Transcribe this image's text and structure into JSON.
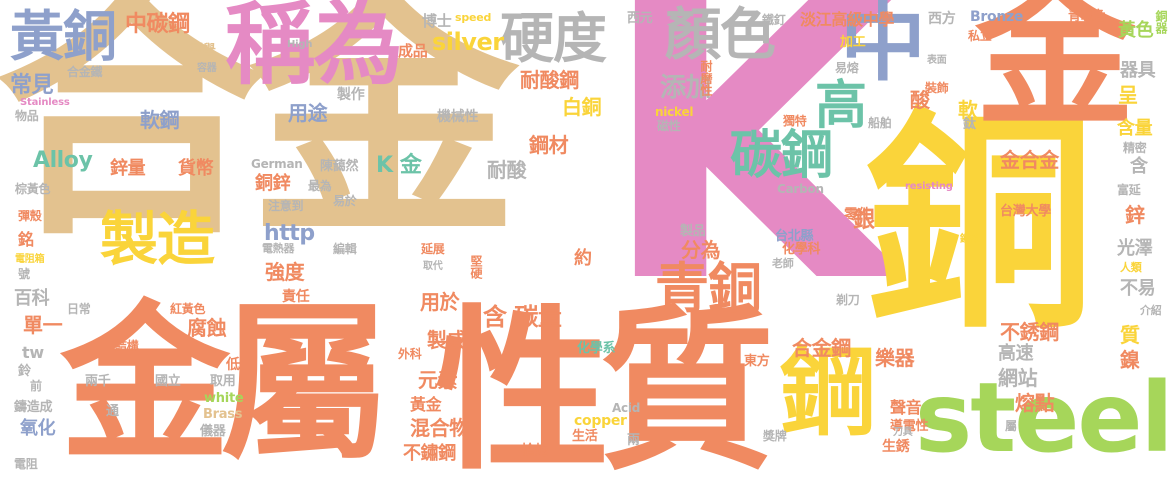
{
  "palette": {
    "tan": "#e3c28f",
    "pink": "#e58ac4",
    "orange": "#f08a61",
    "yellow": "#fad43a",
    "green": "#a6d65a",
    "blue": "#8ea0cb",
    "teal": "#6cc3a8",
    "grey": "#b5b5b5"
  },
  "words": [
    {
      "t": "合金",
      "c": "tan",
      "cls": "big"
    },
    {
      "t": "K",
      "c": "pink"
    },
    {
      "t": "金屬",
      "c": "orange",
      "cls": "big"
    },
    {
      "t": "銅",
      "c": "yellow"
    },
    {
      "t": "金",
      "c": "orange"
    },
    {
      "t": "性質",
      "c": "orange",
      "cls": "big"
    },
    {
      "t": "steel",
      "c": "green"
    },
    {
      "t": "製造",
      "c": "yellow"
    },
    {
      "t": "稱為",
      "c": "pink"
    },
    {
      "t": "鋼",
      "c": "yellow"
    },
    {
      "t": "中",
      "c": "blue"
    },
    {
      "t": "黃銅",
      "c": "blue"
    },
    {
      "t": "硬度",
      "c": "grey"
    },
    {
      "t": "顏色",
      "c": "grey"
    },
    {
      "t": "碳鋼",
      "c": "teal"
    },
    {
      "t": "青銅",
      "c": "orange"
    },
    {
      "t": "高",
      "c": "teal"
    },
    {
      "t": "中碳鋼",
      "c": "orange"
    },
    {
      "t": "博士",
      "c": "grey"
    },
    {
      "t": "speed",
      "c": "yellow"
    },
    {
      "t": "西元",
      "c": "grey"
    },
    {
      "t": "鐵釘",
      "c": "grey"
    },
    {
      "t": "淡江高級中學",
      "c": "orange"
    },
    {
      "t": "西方",
      "c": "grey"
    },
    {
      "t": "Bronze",
      "c": "blue"
    },
    {
      "t": "青灰色",
      "c": "orange"
    },
    {
      "t": "銅器",
      "c": "green"
    },
    {
      "t": "成品",
      "c": "orange"
    },
    {
      "t": "silver",
      "c": "yellow"
    },
    {
      "t": "列舉",
      "c": "tan"
    },
    {
      "t": "High",
      "c": "grey"
    },
    {
      "t": "合金鐵",
      "c": "grey"
    },
    {
      "t": "容器",
      "c": "grey"
    },
    {
      "t": "常見",
      "c": "blue"
    },
    {
      "t": "Stainless",
      "c": "pink"
    },
    {
      "t": "物品",
      "c": "grey"
    },
    {
      "t": "耐酸鋼",
      "c": "orange"
    },
    {
      "t": "添加",
      "c": "grey"
    },
    {
      "t": "白銅",
      "c": "yellow"
    },
    {
      "t": "製作",
      "c": "grey"
    },
    {
      "t": "用途",
      "c": "blue"
    },
    {
      "t": "軟鋼",
      "c": "blue"
    },
    {
      "t": "機械性",
      "c": "grey"
    },
    {
      "t": "nickel",
      "c": "yellow"
    },
    {
      "t": "磁性",
      "c": "grey"
    },
    {
      "t": "耐磨性",
      "c": "orange"
    },
    {
      "t": "加工",
      "c": "yellow"
    },
    {
      "t": "私立",
      "c": "orange"
    },
    {
      "t": "易熔",
      "c": "grey"
    },
    {
      "t": "表面",
      "c": "grey"
    },
    {
      "t": "黃色",
      "c": "green"
    },
    {
      "t": "器具",
      "c": "grey"
    },
    {
      "t": "呈",
      "c": "yellow"
    },
    {
      "t": "含量",
      "c": "yellow"
    },
    {
      "t": "軟",
      "c": "yellow"
    },
    {
      "t": "酸",
      "c": "orange"
    },
    {
      "t": "裝飾",
      "c": "orange"
    },
    {
      "t": "獨特",
      "c": "orange"
    },
    {
      "t": "船舶",
      "c": "grey"
    },
    {
      "t": "鈦",
      "c": "grey"
    },
    {
      "t": "Alloy",
      "c": "teal"
    },
    {
      "t": "鋅量",
      "c": "orange"
    },
    {
      "t": "貨幣",
      "c": "orange"
    },
    {
      "t": "German",
      "c": "grey"
    },
    {
      "t": "陳藹然",
      "c": "grey"
    },
    {
      "t": "K 金",
      "c": "teal"
    },
    {
      "t": "耐酸",
      "c": "grey"
    },
    {
      "t": "鋼材",
      "c": "orange"
    },
    {
      "t": "金合金",
      "c": "orange"
    },
    {
      "t": "含",
      "c": "grey"
    },
    {
      "t": "銅鋅",
      "c": "orange"
    },
    {
      "t": "最為",
      "c": "grey"
    },
    {
      "t": "Carbon",
      "c": "grey"
    },
    {
      "t": "精密",
      "c": "grey"
    },
    {
      "t": "富延",
      "c": "grey"
    },
    {
      "t": "棕黃色",
      "c": "grey"
    },
    {
      "t": "resisting",
      "c": "pink"
    },
    {
      "t": "台灣大學",
      "c": "orange"
    },
    {
      "t": "鋅",
      "c": "orange"
    },
    {
      "t": "光澤",
      "c": "grey"
    },
    {
      "t": "彈殼",
      "c": "orange"
    },
    {
      "t": "銘",
      "c": "orange"
    },
    {
      "t": "注意到",
      "c": "grey"
    },
    {
      "t": "易於",
      "c": "grey"
    },
    {
      "t": "銀",
      "c": "orange"
    },
    {
      "t": "零件",
      "c": "orange"
    },
    {
      "t": "台北縣",
      "c": "blue"
    },
    {
      "t": "化學科",
      "c": "orange"
    },
    {
      "t": "http",
      "c": "blue"
    },
    {
      "t": "鐵絲",
      "c": "yellow"
    },
    {
      "t": "人類",
      "c": "yellow"
    },
    {
      "t": "電阻箱",
      "c": "yellow"
    },
    {
      "t": "電熱器",
      "c": "grey"
    },
    {
      "t": "編輯",
      "c": "grey"
    },
    {
      "t": "延展",
      "c": "orange"
    },
    {
      "t": "製品",
      "c": "grey"
    },
    {
      "t": "分為",
      "c": "orange"
    },
    {
      "t": "老師",
      "c": "grey"
    },
    {
      "t": "號",
      "c": "grey"
    },
    {
      "t": "強度",
      "c": "orange"
    },
    {
      "t": "約",
      "c": "orange"
    },
    {
      "t": "百科",
      "c": "grey"
    },
    {
      "t": "日常",
      "c": "grey"
    },
    {
      "t": "責任",
      "c": "orange"
    },
    {
      "t": "堅硬",
      "c": "orange"
    },
    {
      "t": "取代",
      "c": "grey"
    },
    {
      "t": "不易",
      "c": "grey"
    },
    {
      "t": "剃刀",
      "c": "grey"
    },
    {
      "t": "介紹",
      "c": "grey"
    },
    {
      "t": "單一",
      "c": "orange"
    },
    {
      "t": "紅黃色",
      "c": "orange"
    },
    {
      "t": "腐蝕",
      "c": "orange"
    },
    {
      "t": "用於",
      "c": "orange"
    },
    {
      "t": "含 碳量",
      "c": "orange"
    },
    {
      "t": "不銹鋼",
      "c": "orange"
    },
    {
      "t": "合金鋼",
      "c": "orange"
    },
    {
      "t": "質",
      "c": "yellow"
    },
    {
      "t": "鎳",
      "c": "orange"
    },
    {
      "t": "結構",
      "c": "orange"
    },
    {
      "t": "製成",
      "c": "orange"
    },
    {
      "t": "化學系",
      "c": "teal"
    },
    {
      "t": "東方",
      "c": "orange"
    },
    {
      "t": "高速",
      "c": "grey"
    },
    {
      "t": "網站",
      "c": "grey"
    },
    {
      "t": "樂器",
      "c": "orange"
    },
    {
      "t": "tw",
      "c": "grey"
    },
    {
      "t": "兩千",
      "c": "grey"
    },
    {
      "t": "國立",
      "c": "grey"
    },
    {
      "t": "取用",
      "c": "grey"
    },
    {
      "t": "元素",
      "c": "orange"
    },
    {
      "t": "熔點",
      "c": "orange"
    },
    {
      "t": "white",
      "c": "green"
    },
    {
      "t": "鑄造成",
      "c": "grey"
    },
    {
      "t": "通",
      "c": "grey"
    },
    {
      "t": "Brass",
      "c": "tan"
    },
    {
      "t": "黃金",
      "c": "orange"
    },
    {
      "t": "Acid",
      "c": "grey"
    },
    {
      "t": "copper",
      "c": "yellow"
    },
    {
      "t": "聲音",
      "c": "orange"
    },
    {
      "t": "導電性",
      "c": "orange"
    },
    {
      "t": "氧化",
      "c": "blue"
    },
    {
      "t": "混合物",
      "c": "orange"
    },
    {
      "t": "生活",
      "c": "orange"
    },
    {
      "t": "兩",
      "c": "grey"
    },
    {
      "t": "獎牌",
      "c": "grey"
    },
    {
      "t": "生銹",
      "c": "orange"
    },
    {
      "t": "儀器",
      "c": "grey"
    },
    {
      "t": "不鏽鋼",
      "c": "orange"
    },
    {
      "t": "槍炮",
      "c": "orange"
    },
    {
      "t": "電阻",
      "c": "grey"
    },
    {
      "t": "刀具",
      "c": "grey"
    },
    {
      "t": "屬",
      "c": "grey"
    },
    {
      "t": "外科",
      "c": "orange"
    },
    {
      "t": "鈴",
      "c": "grey"
    },
    {
      "t": "前",
      "c": "grey"
    },
    {
      "t": "低",
      "c": "orange"
    }
  ]
}
